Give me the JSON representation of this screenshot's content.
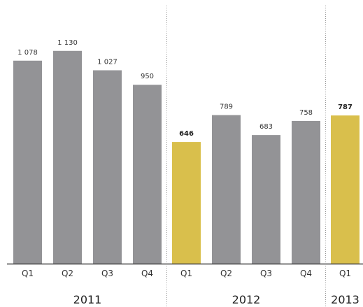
{
  "chart_data": {
    "type": "bar",
    "categories": [
      "Q1",
      "Q2",
      "Q3",
      "Q4",
      "Q1",
      "Q2",
      "Q3",
      "Q4",
      "Q1"
    ],
    "groups": [
      {
        "label": "2011",
        "start": 0,
        "end": 3
      },
      {
        "label": "2012",
        "start": 4,
        "end": 7
      },
      {
        "label": "2013",
        "start": 8,
        "end": 8
      }
    ],
    "values": [
      1078,
      1130,
      1027,
      950,
      646,
      789,
      683,
      758,
      787
    ],
    "value_labels": [
      "1 078",
      "1 130",
      "1 027",
      "950",
      "646",
      "789",
      "683",
      "758",
      "787"
    ],
    "highlighted": [
      false,
      false,
      false,
      false,
      true,
      false,
      false,
      false,
      true
    ],
    "ylim": [
      0,
      1300
    ],
    "grid": false,
    "colors": {
      "bar": "#939396",
      "highlight": "#d9bf4c",
      "axis": "#444444",
      "separator": "#999999"
    }
  }
}
